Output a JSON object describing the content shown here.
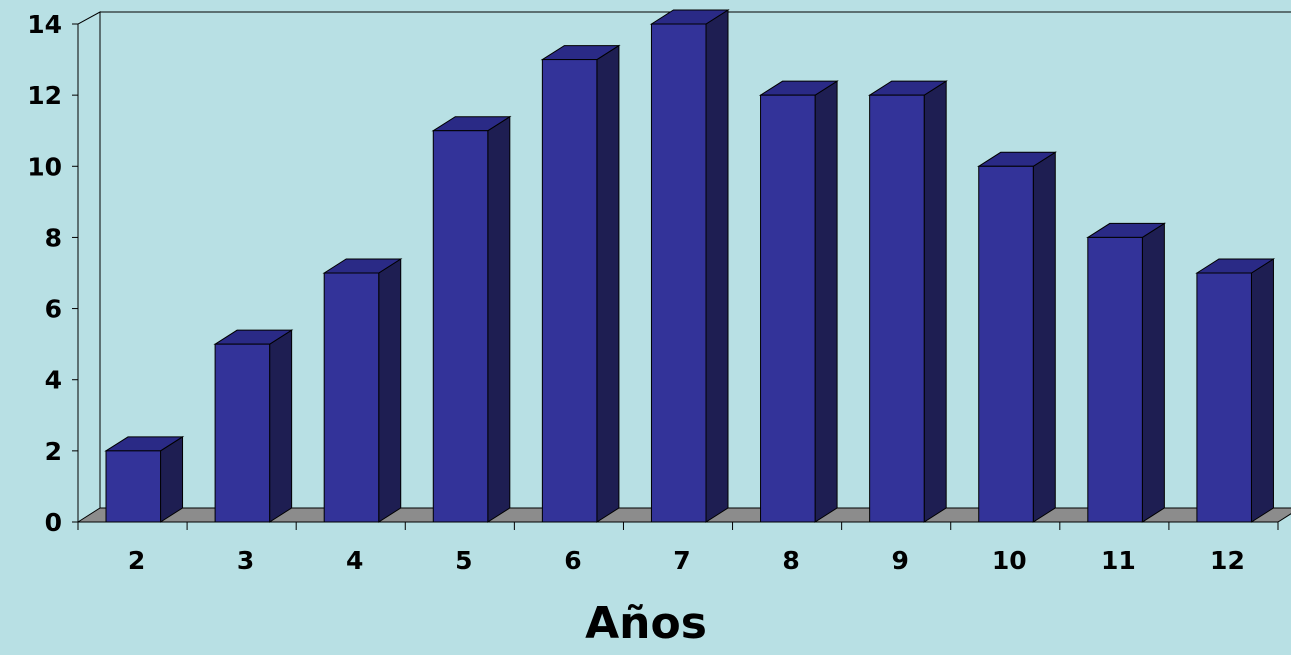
{
  "chart_data": {
    "type": "bar",
    "title": "",
    "xlabel": "Años",
    "ylabel": "",
    "categories": [
      "2",
      "3",
      "4",
      "5",
      "6",
      "7",
      "8",
      "9",
      "10",
      "11",
      "12"
    ],
    "values": [
      2,
      5,
      7,
      11,
      13,
      14,
      12,
      12,
      10,
      8,
      7
    ],
    "ylim": [
      0,
      14
    ],
    "yticks": [
      "0",
      "2",
      "4",
      "6",
      "8",
      "10",
      "12",
      "14"
    ],
    "style": "3d-column",
    "grid": false,
    "legend": "none"
  },
  "colors": {
    "background": "#b8e0e4",
    "bar_front": "#333399",
    "bar_top": "#2a2a86",
    "bar_side": "#1e1e52",
    "floor": "#8c8c8c"
  }
}
